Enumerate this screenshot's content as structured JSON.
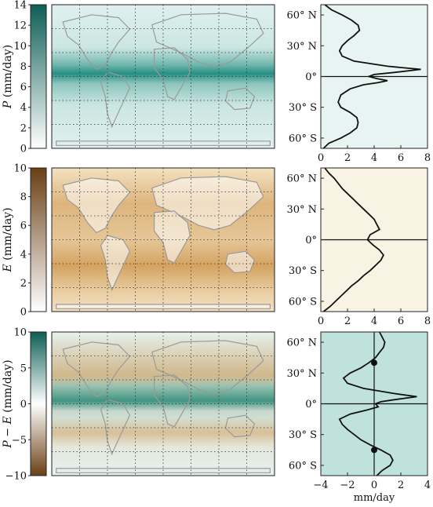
{
  "chart_data": [
    {
      "type": "heatmap",
      "name": "precipitation",
      "colorbar_label_var": "P",
      "colorbar_label_units": " (mm/day)",
      "colorbar_ticks": [
        0,
        2,
        4,
        6,
        8,
        10,
        12,
        14
      ],
      "colorbar_range": [
        0,
        14
      ],
      "colormap": [
        "#ffffff",
        "#0d5e55"
      ],
      "map_fill": "#eaf6f4",
      "band_color": "#1c8a7c",
      "profile": {
        "type": "line",
        "background": "#e8f4f2",
        "x_ticks": [
          "0",
          "2",
          "4",
          "6",
          "8"
        ],
        "xlim": [
          0,
          8
        ],
        "y_ticks": [
          "60° N",
          "30° N",
          "0°",
          "30° S",
          "60° S"
        ],
        "ylim": [
          -70,
          70
        ],
        "lat": [
          70,
          65,
          60,
          55,
          50,
          45,
          40,
          35,
          30,
          25,
          20,
          15,
          10,
          7,
          4,
          2,
          0,
          -2,
          -4,
          -6,
          -8,
          -12,
          -18,
          -25,
          -30,
          -35,
          -40,
          -45,
          -50,
          -55,
          -60,
          -65,
          -70
        ],
        "values": [
          0.3,
          0.8,
          1.6,
          2.3,
          2.8,
          2.9,
          2.5,
          2.0,
          1.6,
          1.4,
          1.6,
          2.5,
          5.0,
          7.5,
          5.5,
          4.0,
          3.6,
          4.2,
          5.0,
          4.3,
          3.2,
          2.2,
          1.5,
          1.3,
          1.5,
          2.2,
          2.7,
          2.8,
          2.7,
          2.2,
          1.5,
          0.6,
          0.2
        ],
        "zero_line": "lat"
      }
    },
    {
      "type": "heatmap",
      "name": "evaporation",
      "colorbar_label_var": "E",
      "colorbar_label_units": " (mm/day)",
      "colorbar_ticks": [
        0,
        2,
        4,
        6,
        8,
        10
      ],
      "colorbar_range": [
        0,
        10
      ],
      "colormap": [
        "#ffffff",
        "#6a3f14"
      ],
      "map_fill": "#f5e6c8",
      "band_color": "#c98c3e",
      "profile": {
        "type": "line",
        "background": "#f9f3e3",
        "x_ticks": [
          "0",
          "2",
          "4",
          "6",
          "8"
        ],
        "xlim": [
          0,
          8
        ],
        "y_ticks": [
          "60° N",
          "30° N",
          "0°",
          "30° S",
          "60° S"
        ],
        "ylim": [
          -70,
          70
        ],
        "lat": [
          70,
          65,
          60,
          55,
          50,
          45,
          40,
          35,
          30,
          25,
          20,
          15,
          10,
          5,
          0,
          -5,
          -10,
          -15,
          -20,
          -25,
          -30,
          -35,
          -40,
          -45,
          -50,
          -55,
          -60,
          -65,
          -70
        ],
        "values": [
          0.3,
          0.6,
          1.0,
          1.3,
          1.6,
          2.0,
          2.4,
          2.8,
          3.2,
          3.6,
          4.0,
          4.2,
          4.4,
          3.7,
          3.5,
          3.9,
          4.4,
          4.7,
          4.5,
          4.1,
          3.7,
          3.2,
          2.8,
          2.3,
          1.9,
          1.5,
          1.1,
          0.7,
          0.2
        ],
        "zero_line": "lat"
      }
    },
    {
      "type": "heatmap",
      "name": "p-minus-e",
      "colorbar_label_var": "P − E",
      "colorbar_label_units": " (mm/day)",
      "colorbar_ticks": [
        -10,
        -5,
        0,
        5,
        10
      ],
      "colorbar_range": [
        -10,
        10
      ],
      "colormap": [
        "#6a3f14",
        "#ffffff",
        "#0d5e55"
      ],
      "map_fill": "#f1f7f4",
      "band_color": "#1c8a7c",
      "profile": {
        "type": "line",
        "background": "#bfe3dc",
        "x_ticks": [
          "−4",
          "−2",
          "0",
          "2",
          "4"
        ],
        "xlim": [
          -4,
          4
        ],
        "xlabel": "mm/day",
        "y_ticks": [
          "60° N",
          "30° N",
          "0°",
          "30° S",
          "60° S"
        ],
        "ylim": [
          -70,
          70
        ],
        "lat": [
          70,
          65,
          60,
          55,
          50,
          45,
          40,
          35,
          30,
          25,
          20,
          15,
          10,
          7,
          4,
          2,
          0,
          -3,
          -6,
          -10,
          -15,
          -20,
          -25,
          -30,
          -35,
          -40,
          -45,
          -50,
          -55,
          -60,
          -65,
          -70
        ],
        "values": [
          0.4,
          0.6,
          0.8,
          0.7,
          0.4,
          0.1,
          -0.4,
          -1.0,
          -1.8,
          -2.3,
          -2.0,
          -0.8,
          1.5,
          3.2,
          1.5,
          0.5,
          0.1,
          0.3,
          -0.5,
          -1.8,
          -2.6,
          -2.4,
          -2.0,
          -1.5,
          -1.0,
          -0.3,
          0.5,
          1.2,
          1.4,
          1.2,
          0.6,
          0.2
        ],
        "zero_line": "both",
        "markers": [
          {
            "lat": 40,
            "value": 0
          },
          {
            "lat": -45,
            "value": 0
          }
        ]
      }
    }
  ]
}
